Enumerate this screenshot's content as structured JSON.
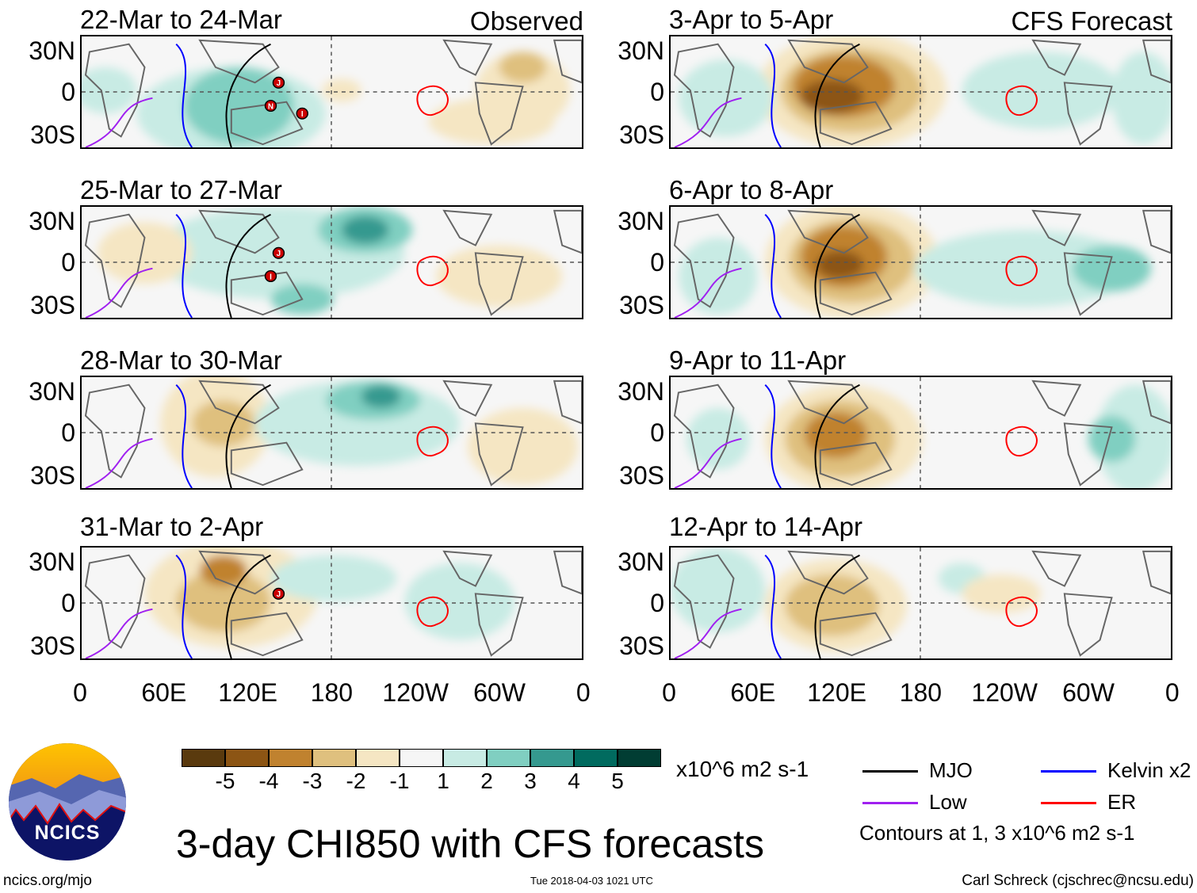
{
  "panels": {
    "left": [
      {
        "title": "22-Mar to 24-Mar",
        "tag": "Observed",
        "storms": [
          "J",
          "N",
          "I"
        ]
      },
      {
        "title": "25-Mar to 27-Mar",
        "tag": "",
        "storms": [
          "J",
          "I"
        ]
      },
      {
        "title": "28-Mar to 30-Mar",
        "tag": "",
        "storms": []
      },
      {
        "title": "31-Mar to 2-Apr",
        "tag": "",
        "storms": [
          "J"
        ]
      }
    ],
    "right": [
      {
        "title": "3-Apr to 5-Apr",
        "tag": "CFS Forecast"
      },
      {
        "title": "6-Apr to 8-Apr",
        "tag": ""
      },
      {
        "title": "9-Apr to 11-Apr",
        "tag": ""
      },
      {
        "title": "12-Apr to 14-Apr",
        "tag": ""
      }
    ]
  },
  "lat_labels": [
    "30N",
    "0",
    "30S"
  ],
  "lon_labels": [
    "0",
    "60E",
    "120E",
    "180",
    "120W",
    "60W",
    "0"
  ],
  "colorbar": {
    "colors": [
      "#5a3a0e",
      "#8c5514",
      "#c0822f",
      "#dfc07e",
      "#f5e6c3",
      "#f6f6f6",
      "#c8ebe4",
      "#80cfc1",
      "#35998f",
      "#016b5f",
      "#013d33"
    ],
    "labels": [
      "-5",
      "-4",
      "-3",
      "-2",
      "-1",
      "1",
      "2",
      "3",
      "4",
      "5"
    ],
    "units": "x10^6 m2 s-1"
  },
  "legend": {
    "items": [
      {
        "label": "MJO",
        "color": "#000000"
      },
      {
        "label": "Kelvin x2",
        "color": "#0000ff"
      },
      {
        "label": "Low",
        "color": "#a020f0"
      },
      {
        "label": "ER",
        "color": "#ff0000"
      }
    ],
    "contours_note": "Contours at 1, 3 x10^6 m2 s-1"
  },
  "title": "3-day CHI850 with CFS forecasts",
  "logo_text": "NCICS",
  "footer": {
    "url": "ncics.org/mjo",
    "timestamp": "Tue 2018-04-03 1021 UTC",
    "author": "Carl Schreck (cjschrec@ncsu.edu)"
  }
}
